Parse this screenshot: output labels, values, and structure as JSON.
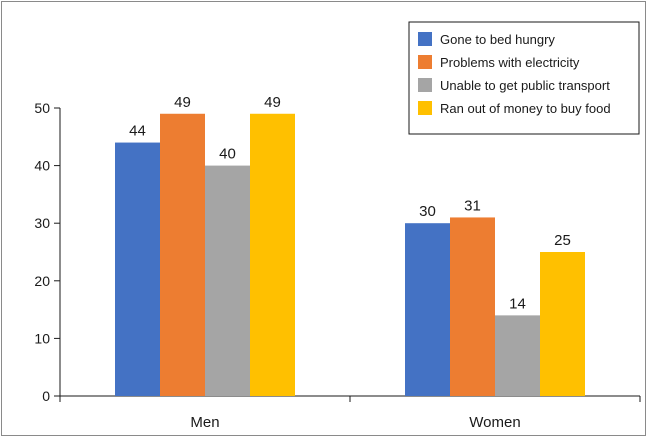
{
  "chart_data": {
    "type": "bar",
    "title": "",
    "xlabel": "",
    "ylabel": "",
    "categories": [
      "Men",
      "Women"
    ],
    "series": [
      {
        "name": "Gone to bed hungry",
        "color": "#4472C4",
        "values": [
          44,
          30
        ]
      },
      {
        "name": "Problems with electricity",
        "color": "#ED7D31",
        "values": [
          49,
          31
        ]
      },
      {
        "name": "Unable to get public transport",
        "color": "#A5A5A5",
        "values": [
          40,
          14
        ]
      },
      {
        "name": "Ran out of money to buy food",
        "color": "#FFC000",
        "values": [
          49,
          25
        ]
      }
    ],
    "ylim": [
      0,
      50
    ],
    "yticks": [
      0,
      10,
      20,
      30,
      40,
      50
    ],
    "grid": false,
    "legend_position": "top-right"
  }
}
